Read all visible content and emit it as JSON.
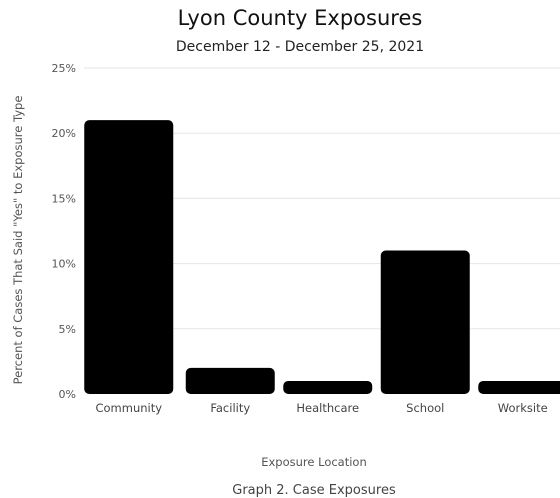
{
  "chart_data": {
    "type": "bar",
    "title": "Lyon County Exposures",
    "subtitle": "December 12 - December 25, 2021",
    "xlabel": "Exposure Location",
    "ylabel": "Percent of Cases That Said \"Yes\" to Exposure Type",
    "caption": "Graph 2. Case Exposures",
    "categories": [
      "Community",
      "Facility",
      "Healthcare",
      "School",
      "Worksite"
    ],
    "values": [
      21,
      2,
      1,
      11,
      1
    ],
    "ylim": [
      0,
      25
    ],
    "yticks": [
      0,
      5,
      10,
      15,
      20,
      25
    ],
    "ytick_labels": [
      "0%",
      "5%",
      "10%",
      "15%",
      "20%",
      "25%"
    ],
    "grid": true,
    "legend": false,
    "bar_color": "#000000"
  }
}
